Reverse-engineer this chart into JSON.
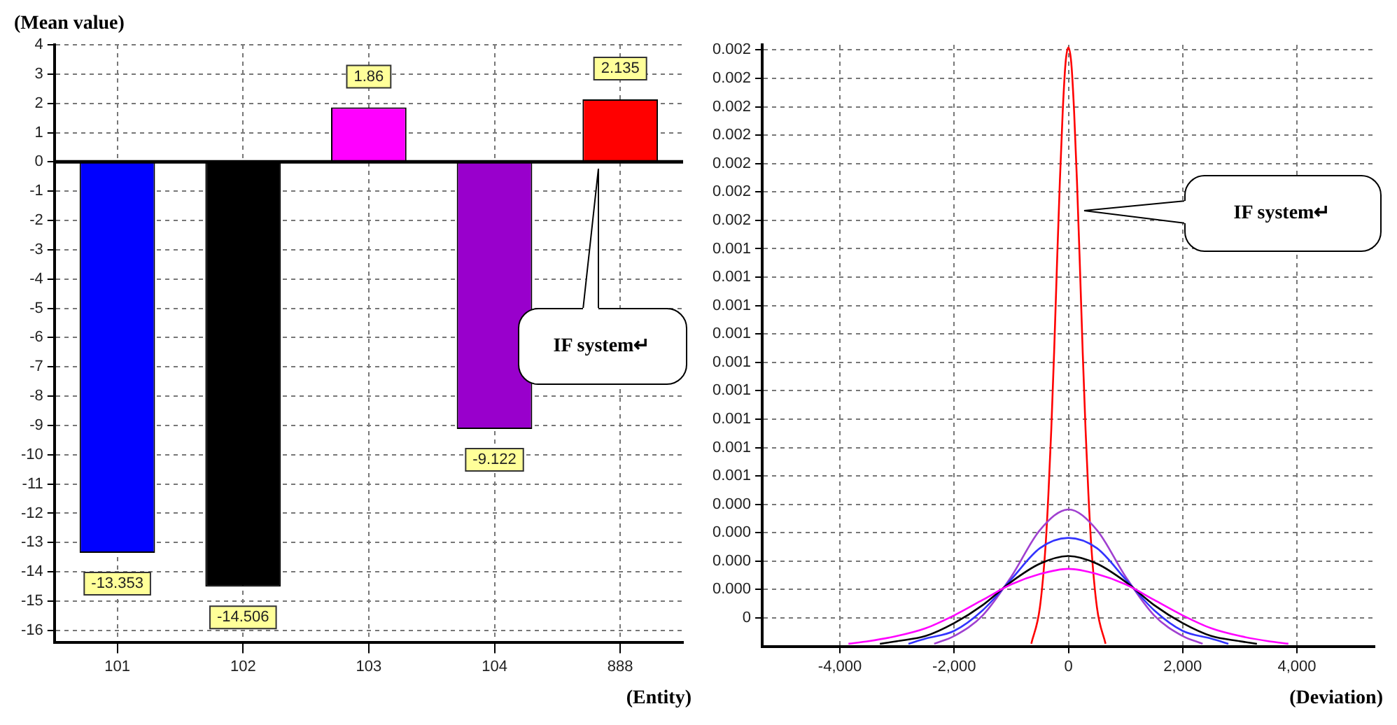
{
  "chart_data": [
    {
      "type": "bar",
      "ylabel": "(Mean value)",
      "xlabel": "(Entity)",
      "categories": [
        "101",
        "102",
        "103",
        "104",
        "888"
      ],
      "values": [
        -13.353,
        -14.506,
        1.86,
        -9.122,
        2.135
      ],
      "colors": [
        "#0000ff",
        "#000000",
        "#ff00ff",
        "#9900cc",
        "#ff0000"
      ],
      "ylim": [
        -16.4,
        4
      ],
      "yticks": [
        -16,
        -15,
        -14,
        -13,
        -12,
        -11,
        -10,
        -9,
        -8,
        -7,
        -6,
        -5,
        -4,
        -3,
        -2,
        -1,
        0,
        1,
        2,
        3,
        4
      ],
      "grid": true,
      "data_labels": true,
      "ref_lines": [
        {
          "axis": "y",
          "value": 0,
          "color": "#000000"
        }
      ],
      "annotations": [
        "IF system↵"
      ]
    },
    {
      "type": "line",
      "xlabel": "(Deviation)",
      "xlim": [
        -5360,
        5360
      ],
      "xticks": [
        {
          "value": -4000,
          "label": "-4,000"
        },
        {
          "value": -2000,
          "label": "-2,000"
        },
        0,
        {
          "value": 2000,
          "label": "2,000"
        },
        {
          "value": 4000,
          "label": "4,000"
        }
      ],
      "ylim": [
        -0.00011,
        0.00222
      ],
      "yticks": [
        0,
        {
          "value": 0.00011,
          "label": "0.000"
        },
        {
          "value": 0.00022,
          "label": "0.000"
        },
        {
          "value": 0.00033,
          "label": "0.000"
        },
        {
          "value": 0.00044,
          "label": "0.000"
        },
        {
          "value": 0.00055,
          "label": "0.001"
        },
        {
          "value": 0.00066,
          "label": "0.001"
        },
        {
          "value": 0.00077,
          "label": "0.001"
        },
        {
          "value": 0.00088,
          "label": "0.001"
        },
        {
          "value": 0.00099,
          "label": "0.001"
        },
        {
          "value": 0.0011,
          "label": "0.001"
        },
        {
          "value": 0.00121,
          "label": "0.001"
        },
        {
          "value": 0.00132,
          "label": "0.001"
        },
        {
          "value": 0.00143,
          "label": "0.001"
        },
        {
          "value": 0.00154,
          "label": "0.002"
        },
        {
          "value": 0.00165,
          "label": "0.002"
        },
        {
          "value": 0.00176,
          "label": "0.002"
        },
        {
          "value": 0.00187,
          "label": "0.002"
        },
        {
          "value": 0.00198,
          "label": "0.002"
        },
        {
          "value": 0.00209,
          "label": "0.002"
        },
        {
          "value": 0.0022,
          "label": "0.002"
        }
      ],
      "grid": true,
      "marker": "none",
      "legend": false,
      "series": [
        {
          "color": "#ff00ff",
          "x": [
            -3850,
            -3500,
            -3000,
            -2500,
            -2000,
            -1500,
            -1000,
            -500,
            0,
            500,
            1000,
            1500,
            2000,
            2500,
            3000,
            3500,
            3850
          ],
          "values": [
            -0.0001,
            -9e-05,
            -7e-05,
            -4e-05,
            1e-05,
            7e-05,
            0.00013,
            0.00017,
            0.00019,
            0.00017,
            0.00013,
            7e-05,
            1e-05,
            -4e-05,
            -7e-05,
            -9e-05,
            -0.0001
          ]
        },
        {
          "color": "#000000",
          "x": [
            -3300,
            -3000,
            -2500,
            -2000,
            -1500,
            -1000,
            -500,
            0,
            500,
            1000,
            1500,
            2000,
            2500,
            3000,
            3300
          ],
          "values": [
            -0.0001,
            -9e-05,
            -7e-05,
            -2e-05,
            5e-05,
            0.00014,
            0.00021,
            0.00024,
            0.00021,
            0.00014,
            5e-05,
            -2e-05,
            -7e-05,
            -9e-05,
            -0.0001
          ]
        },
        {
          "color": "#3333ff",
          "x": [
            -2800,
            -2500,
            -2000,
            -1500,
            -1000,
            -500,
            0,
            500,
            1000,
            1500,
            2000,
            2500,
            2800
          ],
          "values": [
            -0.0001,
            -8e-05,
            -5e-05,
            3e-05,
            0.00015,
            0.00027,
            0.00031,
            0.00027,
            0.00015,
            3e-05,
            -5e-05,
            -8e-05,
            -0.0001
          ]
        },
        {
          "color": "#a040d0",
          "x": [
            -2350,
            -2000,
            -1500,
            -1000,
            -500,
            0,
            500,
            1000,
            1500,
            2000,
            2350
          ],
          "values": [
            -0.0001,
            -7e-05,
            1e-05,
            0.00016,
            0.00034,
            0.00042,
            0.00034,
            0.00016,
            1e-05,
            -7e-05,
            -0.0001
          ]
        },
        {
          "color": "#ff0000",
          "x": [
            -650,
            -500,
            -400,
            -350,
            -300,
            -250,
            -200,
            -150,
            -100,
            -50,
            0,
            50,
            100,
            150,
            200,
            250,
            300,
            350,
            400,
            500,
            650
          ],
          "values": [
            -0.0001,
            4e-05,
            0.00028,
            0.00048,
            0.00073,
            0.00103,
            0.00137,
            0.00169,
            0.00196,
            0.00215,
            0.00221,
            0.00215,
            0.00196,
            0.00169,
            0.00137,
            0.00103,
            0.00073,
            0.00048,
            0.00028,
            4e-05,
            -0.0001
          ]
        }
      ],
      "annotations": [
        "IF system↵"
      ]
    }
  ]
}
